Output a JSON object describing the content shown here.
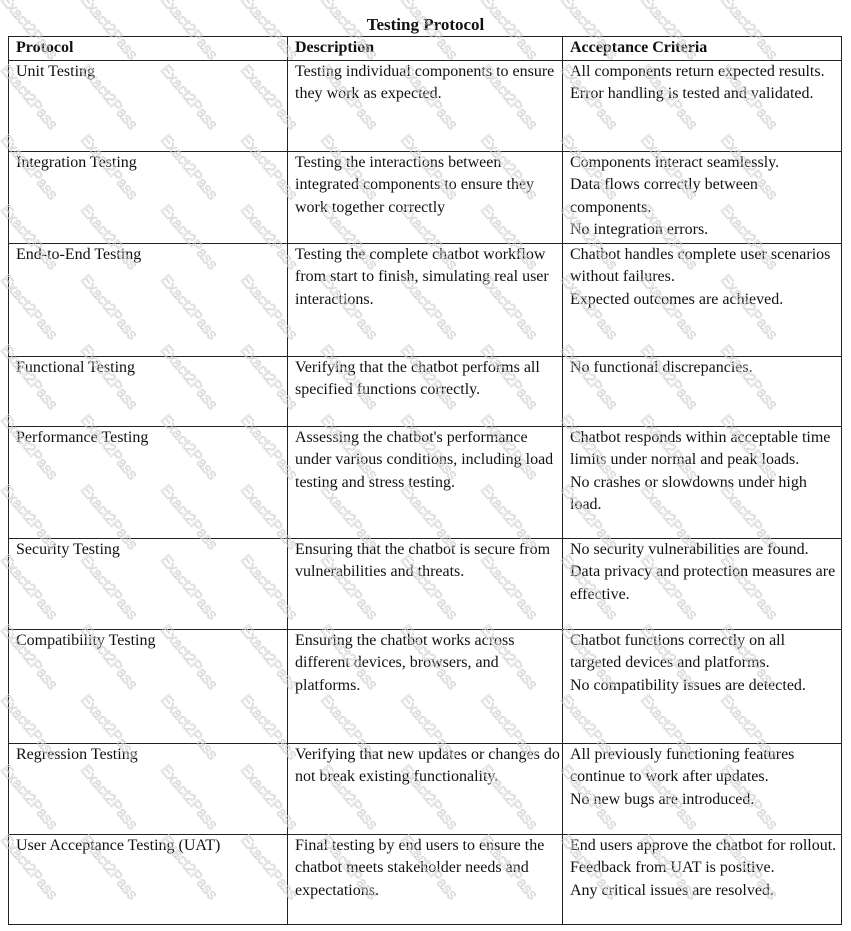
{
  "title": "Testing Protocol",
  "watermark": "Exact2Pass",
  "headers": [
    "Protocol",
    "Description",
    "Acceptance Criteria"
  ],
  "rows": [
    {
      "protocol": "Unit Testing",
      "description": "Testing individual components to ensure they work as expected.",
      "criteria": [
        "All components return expected results.",
        "Error handling is tested and validated."
      ]
    },
    {
      "protocol": "Integration Testing",
      "description": "Testing the interactions between integrated components to ensure they work together correctly",
      "criteria": [
        "Components interact seamlessly.",
        "Data flows correctly between components.",
        "No integration errors."
      ]
    },
    {
      "protocol": "End-to-End Testing",
      "description": "Testing the complete chatbot workflow from start to finish, simulating real user interactions.",
      "criteria": [
        "Chatbot handles complete user scenarios without failures.",
        "Expected outcomes are achieved."
      ]
    },
    {
      "protocol": "Functional Testing",
      "description": "Verifying that the chatbot performs all specified functions correctly.",
      "criteria": [
        "No functional discrepancies."
      ]
    },
    {
      "protocol": "Performance Testing",
      "description": "Assessing the chatbot's performance under various conditions, including load testing and stress testing.",
      "criteria": [
        "Chatbot responds within acceptable time limits under normal and peak loads.",
        "No crashes or slowdowns under high load."
      ]
    },
    {
      "protocol": "Security Testing",
      "description": "Ensuring that the chatbot is secure from vulnerabilities and threats.",
      "criteria": [
        "No security vulnerabilities are found.",
        "Data privacy and protection measures are effective."
      ]
    },
    {
      "protocol": "Compatibility Testing",
      "description": "Ensuring the chatbot works across different devices, browsers, and platforms.",
      "criteria": [
        "Chatbot functions correctly on all targeted devices and platforms.",
        "No compatibility issues are detected."
      ]
    },
    {
      "protocol": "Regression Testing",
      "description": "Verifying that new updates or changes do not break existing functionality.",
      "criteria": [
        "All previously functioning features continue to work after updates.",
        "No new bugs are introduced."
      ]
    },
    {
      "protocol": "User Acceptance Testing (UAT)",
      "description": "Final testing by end users to ensure the chatbot meets stakeholder needs and expectations.",
      "criteria": [
        "End users approve the chatbot for rollout. Feedback from UAT is positive.",
        "Any critical issues are resolved."
      ]
    }
  ]
}
